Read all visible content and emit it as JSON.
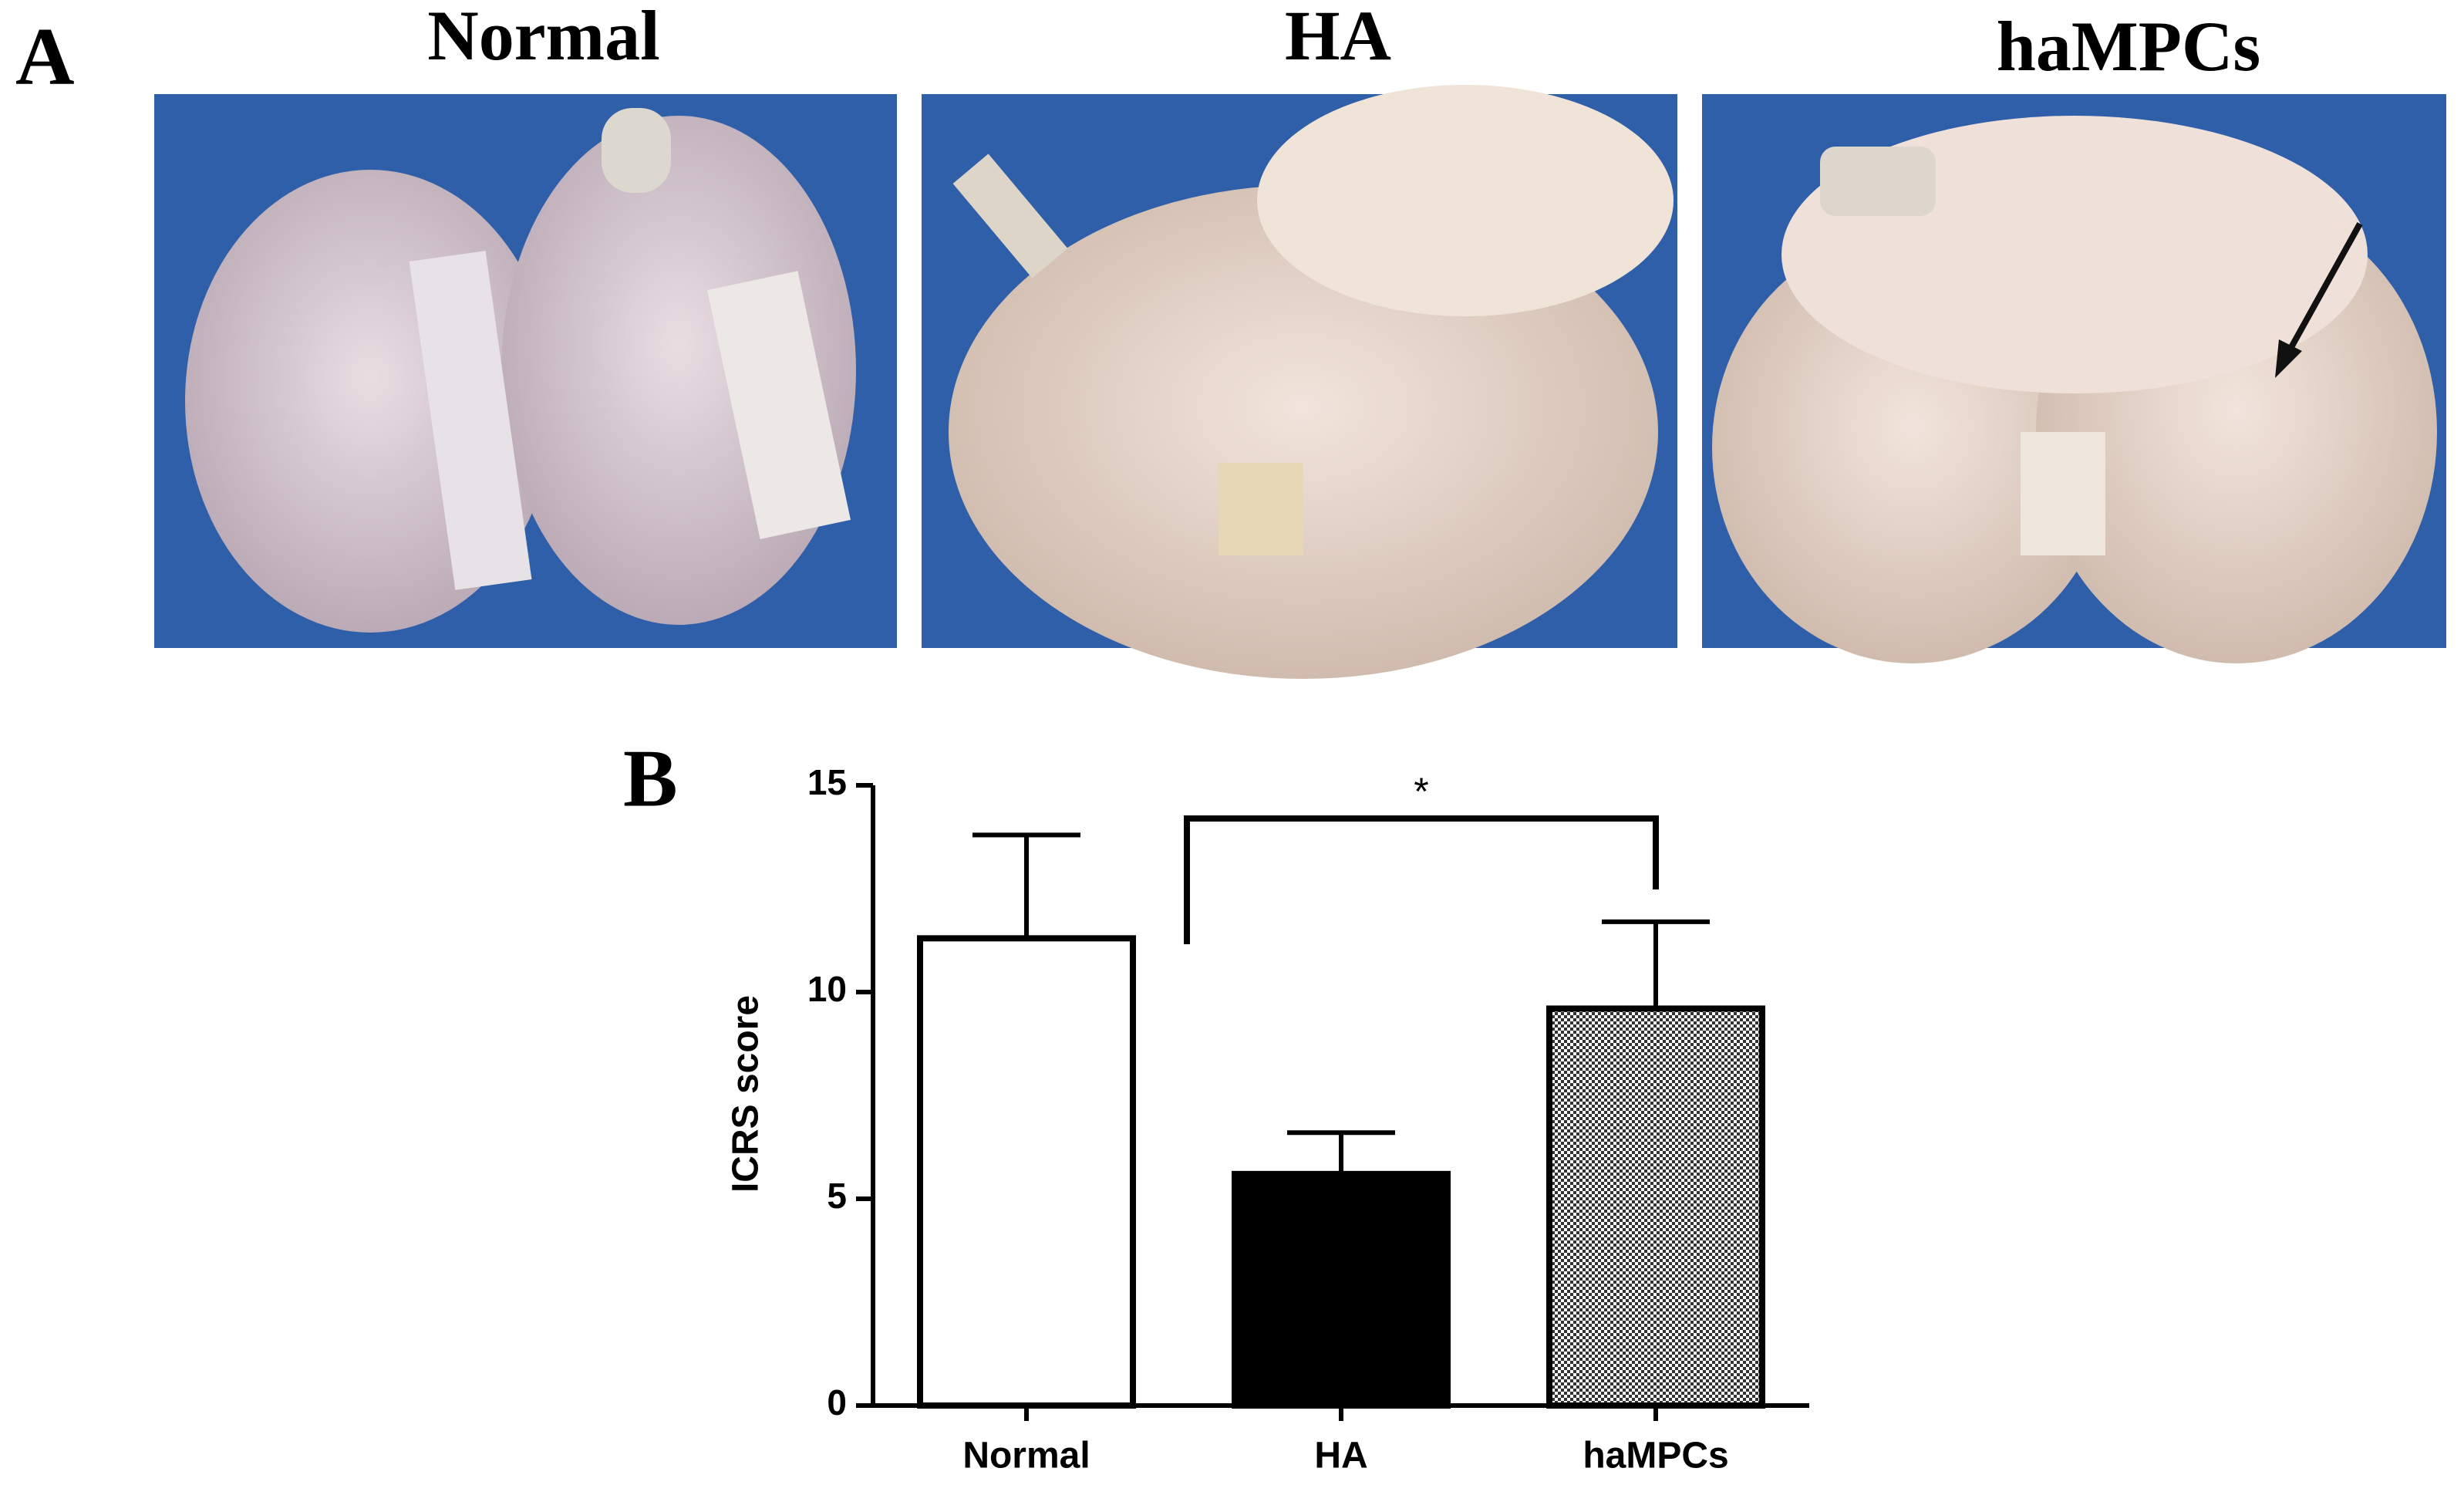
{
  "panel_a": {
    "label": "A",
    "titles": [
      "Normal",
      "HA",
      "haMPCs"
    ]
  },
  "chart_data": {
    "type": "bar",
    "panel_label": "B",
    "ylabel": "ICRS score",
    "categories": [
      "Normal",
      "HA",
      "haMPCs"
    ],
    "values": [
      11.3,
      5.6,
      9.6
    ],
    "errors": [
      2.5,
      1.0,
      2.1
    ],
    "fills": [
      "#ffffff",
      "#000000",
      "checker"
    ],
    "ylim": [
      0,
      15
    ],
    "yticks": [
      0,
      5,
      10,
      15
    ],
    "annotations": [
      {
        "text": "*"
      }
    ]
  }
}
